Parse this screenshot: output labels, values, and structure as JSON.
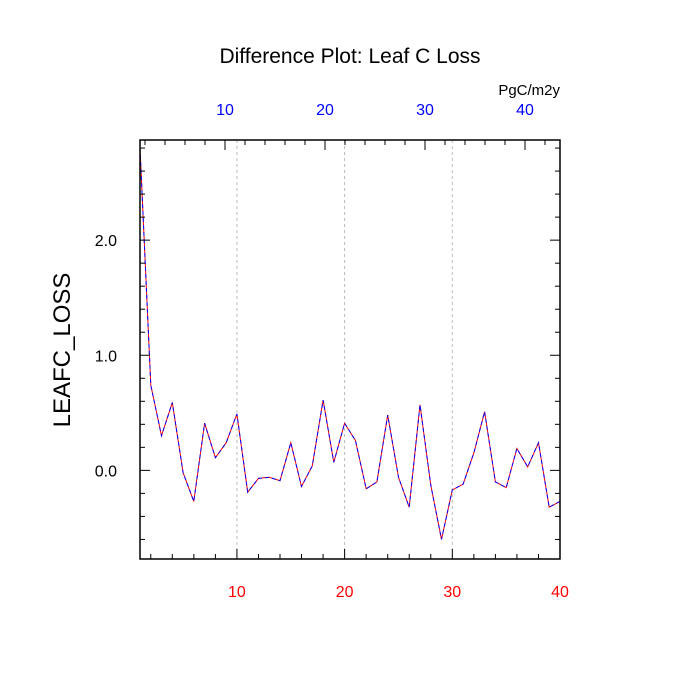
{
  "chart_data": {
    "type": "line",
    "title": "Difference Plot: Leaf C Loss",
    "xlabel": "",
    "ylabel": "LEAFC_LOSS",
    "units": "PgC/m2y",
    "xlim": [
      1,
      40
    ],
    "ylim": [
      -0.77,
      2.87
    ],
    "x_ticks": [
      10,
      20,
      30,
      40
    ],
    "y_ticks": [
      0.0,
      1.0,
      2.0
    ],
    "y_tick_labels": [
      "0.0",
      "1.0",
      "2.0"
    ],
    "top_xlim": [
      1.5,
      43.5
    ],
    "top_x_ticks": [
      10,
      20,
      30,
      40
    ],
    "grid": "vertical dashed at bottom-axis ticks",
    "colors": {
      "bottom_tick_labels": "#ff0000",
      "top_tick_labels": "#0000ff",
      "series_a": "#ff0000",
      "series_b": "#0000ff",
      "grid": "#bbbbbb"
    },
    "series": [
      {
        "x": [
          1,
          2,
          3,
          4,
          5,
          6,
          7,
          8,
          9,
          10,
          11,
          12,
          13,
          14,
          15,
          16,
          17,
          18,
          19,
          20,
          21,
          22,
          23,
          24,
          25,
          26,
          27,
          28,
          29,
          30,
          31,
          32,
          33,
          34,
          35,
          36,
          37,
          38,
          39,
          40
        ],
        "values": [
          2.8,
          0.74,
          0.3,
          0.59,
          -0.02,
          -0.27,
          0.41,
          0.11,
          0.24,
          0.49,
          -0.19,
          -0.07,
          -0.06,
          -0.09,
          0.24,
          -0.14,
          0.04,
          0.61,
          0.07,
          0.41,
          0.26,
          -0.16,
          -0.1,
          0.48,
          -0.06,
          -0.32,
          0.57,
          -0.13,
          -0.6,
          -0.17,
          -0.12,
          0.15,
          0.51,
          -0.1,
          -0.15,
          0.19,
          0.03,
          0.24,
          -0.32,
          -0.27
        ]
      }
    ]
  }
}
